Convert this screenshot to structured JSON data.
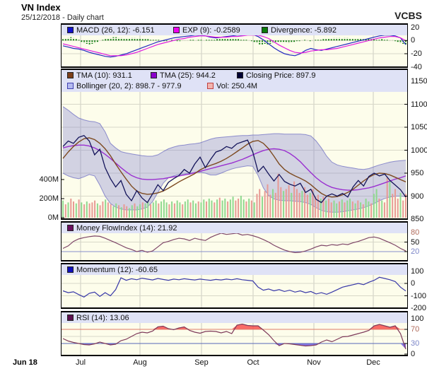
{
  "header": {
    "title": "VN Index",
    "subtitle": "25/12/2018 - Daily chart",
    "brand": "VCBS"
  },
  "x_axis": {
    "start_label": "Jun 18",
    "months": [
      {
        "label": "Jul",
        "f": 0.0515
      },
      {
        "label": "Aug",
        "f": 0.2247
      },
      {
        "label": "Sep",
        "f": 0.4041
      },
      {
        "label": "Oct",
        "f": 0.5546
      },
      {
        "label": "Nov",
        "f": 0.732
      },
      {
        "label": "Dec",
        "f": 0.9052
      }
    ]
  },
  "chart_data": [
    {
      "id": "macd",
      "type": "line",
      "legend": [
        {
          "label": "MACD (26, 12): -6.151",
          "color": "#1111cc"
        },
        {
          "label": "EXP (9): -0.2589",
          "color": "#ee00ee"
        },
        {
          "label": "Divergence: -5.892",
          "color": "#0a7a0a"
        }
      ],
      "ylim": [
        -45,
        25
      ],
      "yticks": [
        {
          "t": "20",
          "v": 20
        },
        {
          "t": "0",
          "v": 0
        },
        {
          "t": "-20",
          "v": -20
        },
        {
          "t": "-40",
          "v": -40
        }
      ],
      "series": {
        "macd": [
          -8,
          -10,
          -12,
          -13,
          -15,
          -18,
          -20,
          -22,
          -24,
          -25,
          -24,
          -22,
          -20,
          -17,
          -14,
          -11,
          -8,
          -5,
          -2,
          0,
          2,
          4,
          5,
          6,
          7,
          8,
          8,
          7,
          5,
          4,
          5,
          6,
          7,
          8,
          8,
          9,
          9,
          6,
          1,
          -5,
          -11,
          -16,
          -20,
          -22,
          -23,
          -20,
          -15,
          -12,
          -14,
          -15,
          -13,
          -11,
          -9,
          -7,
          -5,
          -3,
          -1,
          1,
          3,
          5,
          7,
          8,
          8,
          7,
          4,
          -6.2
        ],
        "signal": [
          -5,
          -7,
          -9,
          -11,
          -13,
          -15,
          -17,
          -19,
          -21,
          -23,
          -23,
          -23,
          -22,
          -20,
          -18,
          -15,
          -12,
          -9,
          -6,
          -4,
          -2,
          0,
          2,
          3,
          5,
          6,
          7,
          7,
          6,
          5,
          5,
          5,
          6,
          6,
          7,
          8,
          8,
          8,
          6,
          3,
          -2,
          -7,
          -11,
          -15,
          -18,
          -19,
          -18,
          -16,
          -15,
          -14,
          -14,
          -13,
          -12,
          -10,
          -8,
          -6,
          -4,
          -2,
          0,
          2,
          4,
          5,
          6,
          6,
          4,
          -0.3
        ],
        "histogram": [
          2,
          3,
          4,
          5,
          4,
          3,
          1,
          -2,
          -4,
          -5,
          -6,
          -5,
          -4,
          -2,
          0,
          1,
          2,
          3,
          4,
          5,
          5,
          4,
          4,
          3,
          3,
          3,
          4,
          4,
          3,
          3,
          2,
          2,
          2,
          1,
          1,
          1,
          1,
          0,
          -1,
          -1,
          0,
          1,
          0,
          -1,
          -1,
          0,
          0,
          0,
          1,
          1,
          0,
          1,
          1,
          0,
          1,
          1,
          1,
          1,
          2,
          2,
          3,
          3,
          2,
          2,
          3,
          2,
          2,
          1,
          1,
          1,
          0,
          -1,
          -3,
          -4,
          -6,
          -6,
          -5,
          -6,
          -5,
          -4,
          -3,
          -2,
          -2,
          -2,
          -3,
          -4,
          -3,
          -2,
          -1,
          -1,
          0,
          1,
          0,
          -1,
          0,
          1,
          1,
          1,
          2,
          2,
          3,
          3,
          4,
          4,
          4,
          3,
          4,
          4,
          3,
          3,
          2,
          3,
          3,
          2,
          2,
          3,
          2,
          2,
          1,
          1,
          2,
          1,
          1,
          0,
          0,
          -1,
          -2,
          -4,
          -5,
          -5.9
        ]
      }
    },
    {
      "id": "price",
      "type": "line+area+volume",
      "legend_row1": [
        {
          "label": "TMA (10): 931.1",
          "color": "#7d3f1a"
        },
        {
          "label": "TMA (25): 944.2",
          "color": "#8a00cc"
        },
        {
          "label": "Closing Price: 897.9",
          "color": "#000033"
        }
      ],
      "legend_row2": [
        {
          "label": "Bollinger (20, 2): 898.7 - 977.9",
          "color": "#b4baf0",
          "border": "#4040b0"
        },
        {
          "label": "Vol: 250.4M",
          "color": "#f2b4ae",
          "border": "#c04040"
        }
      ],
      "ylim": [
        850,
        1177
      ],
      "yticks_right": [
        {
          "t": "1150",
          "v": 1150
        },
        {
          "t": "1100",
          "v": 1100
        },
        {
          "t": "1050",
          "v": 1050
        },
        {
          "t": "1000",
          "v": 1000
        },
        {
          "t": "950",
          "v": 950
        },
        {
          "t": "900",
          "v": 900
        },
        {
          "t": "850",
          "v": 850
        }
      ],
      "yticks_left": [
        {
          "t": "400M",
          "v": 400
        },
        {
          "t": "200M",
          "v": 200
        },
        {
          "t": "0M",
          "v": 0
        }
      ],
      "series": {
        "close": [
          1008,
          1020,
          1015,
          1028,
          1032,
          1020,
          990,
          1002,
          962,
          938,
          920,
          934,
          904,
          890,
          912,
          896,
          886,
          905,
          925,
          912,
          930,
          938,
          945,
          958,
          950,
          970,
          985,
          962,
          980,
          996,
          1000,
          1008,
          1004,
          1014,
          1018,
          1022,
          996,
          953,
          965,
          948,
          933,
          947,
          932,
          926,
          922,
          928,
          908,
          915,
          893,
          886,
          900,
          905,
          900,
          906,
          898,
          920,
          934,
          922,
          943,
          950,
          944,
          948,
          934,
          924,
          914,
          898
        ],
        "tma10": [
          982,
          996,
          1008,
          1018,
          1025,
          1027,
          1023,
          1015,
          1003,
          988,
          970,
          953,
          937,
          922,
          911,
          906,
          904,
          905,
          907,
          911,
          917,
          924,
          931,
          937,
          943,
          949,
          957,
          963,
          967,
          971,
          976,
          982,
          989,
          997,
          1005,
          1013,
          1019,
          1021,
          1015,
          1003,
          987,
          970,
          958,
          950,
          944,
          939,
          933,
          925,
          915,
          906,
          900,
          898,
          899,
          903,
          908,
          915,
          924,
          933,
          941,
          947,
          950,
          949,
          946,
          941,
          936,
          931
        ],
        "tma25": [
          1005,
          1008,
          1010,
          1011,
          1011,
          1009,
          1005,
          999,
          991,
          982,
          972,
          962,
          953,
          945,
          940,
          937,
          936,
          936,
          937,
          938,
          940,
          942,
          944,
          946,
          948,
          951,
          954,
          957,
          960,
          963,
          966,
          969,
          972,
          976,
          980,
          985,
          990,
          995,
          999,
          1002,
          1003,
          1002,
          999,
          993,
          985,
          975,
          963,
          951,
          940,
          931,
          924,
          919,
          916,
          914,
          913,
          913,
          914,
          916,
          918,
          921,
          925,
          929,
          933,
          937,
          940,
          944
        ],
        "boll_upper": [
          1095,
          1087,
          1078,
          1070,
          1066,
          1063,
          1062,
          1058,
          1040,
          1015,
          1005,
          997,
          994,
          992,
          990,
          988,
          987,
          987,
          990,
          997,
          1003,
          1007,
          1010,
          1011,
          1013,
          1014,
          1016,
          1020,
          1024,
          1027,
          1028,
          1029,
          1030,
          1031,
          1032,
          1032,
          1033,
          1033,
          1034,
          1035,
          1036,
          1036,
          1035,
          1035,
          1035,
          1035,
          1034,
          1031,
          1020,
          1005,
          987,
          974,
          968,
          965,
          963,
          961,
          959,
          958,
          960,
          964,
          968,
          971,
          974,
          976,
          977,
          978
        ],
        "boll_lower": [
          950,
          944,
          940,
          938,
          942,
          947,
          944,
          924,
          900,
          884,
          876,
          872,
          870,
          870,
          870,
          872,
          876,
          888,
          908,
          928,
          940,
          944,
          947,
          948,
          950,
          951,
          952,
          950,
          946,
          946,
          950,
          955,
          959,
          962,
          964,
          966,
          965,
          945,
          918,
          901,
          894,
          891,
          890,
          890,
          889,
          888,
          886,
          882,
          875,
          869,
          866,
          865,
          865,
          866,
          868,
          870,
          872,
          875,
          879,
          884,
          890,
          895,
          898,
          900,
          900,
          899
        ],
        "volume": [
          180,
          140,
          160,
          200,
          170,
          150,
          190,
          160,
          140,
          170,
          150,
          160,
          180,
          150,
          130,
          170,
          190,
          160,
          140,
          120,
          150,
          130,
          110,
          140,
          120,
          100,
          130,
          150,
          120,
          140,
          160,
          150,
          170,
          140,
          160,
          180,
          150,
          170,
          190,
          160,
          140,
          170,
          150,
          180,
          160,
          140,
          170,
          190,
          160,
          180,
          150,
          170,
          160,
          190,
          170,
          200,
          180,
          160,
          190,
          210,
          180,
          200,
          170,
          190,
          220,
          180,
          200,
          230,
          190,
          170,
          200,
          180,
          160,
          250,
          300,
          220,
          280,
          350,
          240,
          300,
          260,
          460,
          320,
          280,
          300,
          340,
          260,
          380,
          300,
          260,
          280,
          320,
          240,
          260,
          300,
          220,
          240,
          200,
          220,
          180,
          200,
          160,
          180,
          150,
          170,
          190,
          160,
          180,
          200,
          170,
          150,
          180,
          160,
          140,
          200,
          170,
          150,
          250,
          300,
          200,
          180,
          160,
          420,
          380,
          250,
          300,
          200,
          260,
          180,
          250
        ],
        "volume_direction": "grgrrgrgrgrrrgrrgrrggrgrrggrggrggrggrgggrgrggrggrggrggrggrgrggrggrrggrgrgrrgrrrgrrrgrrgrrrgrrgrrrgrgrrggrgrggrgrgrggrggrgrrgrrrgrr"
      }
    },
    {
      "id": "mfi",
      "type": "line",
      "legend": [
        {
          "label": "Money FlowIndex (14): 21.92",
          "color": "#6a1060"
        }
      ],
      "ylim": [
        0,
        100
      ],
      "hlines": [
        {
          "v": 80,
          "color": "#c87a6a"
        },
        {
          "v": 20,
          "color": "#8890cc"
        }
      ],
      "yticks": [
        {
          "t": "80",
          "v": 80,
          "c": "#b06a5a"
        },
        {
          "t": "50",
          "v": 50
        },
        {
          "t": "20",
          "v": 20,
          "c": "#7b85c8"
        }
      ],
      "series": {
        "mfi": [
          30,
          38,
          52,
          60,
          64,
          67,
          69,
          68,
          62,
          55,
          48,
          40,
          32,
          27,
          20,
          24,
          18,
          22,
          35,
          48,
          52,
          58,
          62,
          60,
          55,
          62,
          58,
          55,
          65,
          72,
          78,
          74,
          76,
          78,
          72,
          74,
          70,
          65,
          58,
          50,
          40,
          32,
          25,
          20,
          17,
          18,
          22,
          28,
          35,
          40,
          38,
          42,
          40,
          44,
          42,
          48,
          52,
          58,
          64,
          66,
          62,
          55,
          48,
          40,
          30,
          22
        ]
      }
    },
    {
      "id": "momentum",
      "type": "line",
      "legend": [
        {
          "label": "Momentum (12): -60.65",
          "color": "#1010bb"
        }
      ],
      "ylim": [
        -200,
        150
      ],
      "yticks": [
        {
          "t": "100",
          "v": 100
        },
        {
          "t": "0",
          "v": 0
        },
        {
          "t": "-100",
          "v": -100
        },
        {
          "t": "-200",
          "v": -200
        }
      ],
      "series": {
        "momentum": [
          -60,
          -75,
          -68,
          -90,
          -110,
          -80,
          -70,
          -105,
          -75,
          -100,
          -50,
          45,
          25,
          38,
          30,
          42,
          35,
          28,
          40,
          32,
          25,
          35,
          30,
          38,
          32,
          28,
          35,
          30,
          25,
          32,
          28,
          35,
          30,
          38,
          30,
          25,
          20,
          -30,
          -55,
          -45,
          -60,
          -50,
          -65,
          -55,
          -70,
          -60,
          -75,
          -65,
          -85,
          -75,
          -88,
          -70,
          -50,
          -30,
          -20,
          -10,
          0,
          -10,
          10,
          25,
          50,
          40,
          30,
          15,
          -30,
          -61
        ]
      }
    },
    {
      "id": "rsi",
      "type": "line",
      "legend": [
        {
          "label": "RSI (14): 13.06",
          "color": "#5c1050"
        }
      ],
      "ylim": [
        0,
        100
      ],
      "hlines": [
        {
          "v": 70,
          "color": "#e07a6a"
        },
        {
          "v": 30,
          "color": "#5868b8"
        }
      ],
      "fill_above": 70,
      "fill_below": 30,
      "yticks": [
        {
          "t": "100",
          "v": 100
        },
        {
          "t": "70",
          "v": 70,
          "c": "#b06a5a"
        },
        {
          "t": "30",
          "v": 30,
          "c": "#7b85c8"
        },
        {
          "t": "0",
          "v": 0
        }
      ],
      "series": {
        "rsi": [
          44,
          37,
          33,
          30,
          27,
          26,
          29,
          34,
          30,
          26,
          28,
          38,
          42,
          50,
          58,
          62,
          60,
          65,
          77,
          79,
          72,
          69,
          74,
          77,
          67,
          62,
          59,
          64,
          65,
          64,
          60,
          64,
          58,
          82,
          85,
          81,
          80,
          80,
          68,
          55,
          38,
          24,
          30,
          29,
          27,
          25,
          23,
          24,
          26,
          34,
          40,
          35,
          42,
          49,
          50,
          54,
          58,
          62,
          67,
          80,
          84,
          80,
          76,
          80,
          58,
          14
        ]
      }
    }
  ]
}
